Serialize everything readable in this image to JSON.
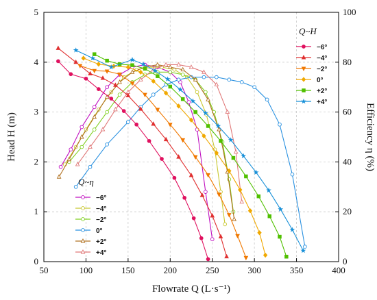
{
  "chart_data": {
    "type": "line",
    "xlabel": "Flowrate Q (L·s⁻¹)",
    "ylabel": "Head H (m)",
    "y2label": "Efficiency η (%)",
    "xlim": [
      50,
      400
    ],
    "ylim": [
      0,
      5
    ],
    "y2lim": [
      0,
      100
    ],
    "xticks": [
      "50",
      "100",
      "150",
      "200",
      "250",
      "300",
      "350",
      "400"
    ],
    "yticks": [
      "0",
      "1",
      "2",
      "3",
      "4",
      "5"
    ],
    "y2ticks": [
      "0",
      "20",
      "40",
      "60",
      "80",
      "100"
    ],
    "grid": true,
    "head_legend_title": "Q~H",
    "eff_legend_title": "Q~η",
    "head_legend_position": "top-right",
    "eff_legend_position": "bottom-left",
    "head_series": [
      {
        "name": "−6°",
        "color": "#e0115f",
        "marker": "circle",
        "x": [
          67,
          82,
          100,
          115,
          130,
          145,
          160,
          175,
          190,
          205,
          217,
          228,
          237,
          245
        ],
        "y": [
          4.02,
          3.76,
          3.67,
          3.46,
          3.27,
          3.02,
          2.75,
          2.42,
          2.06,
          1.68,
          1.28,
          0.87,
          0.47,
          0.05
        ]
      },
      {
        "name": "−4°",
        "color": "#e03030",
        "marker": "triangle",
        "x": [
          67,
          88,
          105,
          120,
          135,
          150,
          165,
          180,
          195,
          210,
          225,
          238,
          250,
          260,
          267
        ],
        "y": [
          4.28,
          4.0,
          3.77,
          3.68,
          3.54,
          3.33,
          3.06,
          2.76,
          2.45,
          2.1,
          1.73,
          1.33,
          0.92,
          0.5,
          0.1
        ]
      },
      {
        "name": "−2°",
        "color": "#f07800",
        "marker": "triangle-down",
        "x": [
          93,
          110,
          125,
          140,
          155,
          170,
          185,
          200,
          215,
          230,
          245,
          258,
          270,
          280,
          290
        ],
        "y": [
          3.93,
          3.83,
          3.82,
          3.76,
          3.58,
          3.35,
          3.05,
          2.75,
          2.44,
          2.1,
          1.74,
          1.35,
          0.94,
          0.52,
          0.08
        ]
      },
      {
        "name": "0°",
        "color": "#f0a800",
        "marker": "diamond",
        "x": [
          97,
          115,
          133,
          150,
          165,
          180,
          195,
          210,
          225,
          240,
          255,
          270,
          283,
          295,
          306,
          313
        ],
        "y": [
          4.08,
          3.96,
          3.92,
          3.9,
          3.8,
          3.62,
          3.38,
          3.12,
          2.84,
          2.52,
          2.18,
          1.82,
          1.44,
          1.02,
          0.58,
          0.13
        ]
      },
      {
        "name": "+2°",
        "color": "#50c000",
        "marker": "square",
        "x": [
          110,
          125,
          140,
          155,
          170,
          185,
          200,
          215,
          230,
          245,
          260,
          275,
          290,
          305,
          318,
          330,
          338
        ],
        "y": [
          4.16,
          4.03,
          3.96,
          3.94,
          3.87,
          3.72,
          3.51,
          3.26,
          3.0,
          2.72,
          2.42,
          2.08,
          1.71,
          1.31,
          0.91,
          0.5,
          0.1
        ]
      },
      {
        "name": "+4°",
        "color": "#1890d8",
        "marker": "star",
        "x": [
          88,
          108,
          130,
          155,
          168,
          182,
          197,
          212,
          227,
          242,
          257,
          272,
          287,
          302,
          317,
          331,
          345,
          358
        ],
        "y": [
          4.24,
          4.08,
          3.9,
          4.05,
          3.96,
          3.83,
          3.66,
          3.45,
          3.22,
          2.98,
          2.72,
          2.44,
          2.12,
          1.79,
          1.43,
          1.05,
          0.64,
          0.22
        ]
      }
    ],
    "eff_series": [
      {
        "name": "−6°",
        "color": "#c010c0",
        "marker": "circle",
        "x": [
          70,
          82,
          95,
          110,
          125,
          140,
          155,
          170,
          185,
          200,
          212,
          222,
          232,
          242,
          250
        ],
        "y": [
          38,
          45,
          54,
          62,
          70,
          75,
          78,
          79,
          78,
          76,
          72,
          64,
          53,
          28,
          9
        ]
      },
      {
        "name": "−4°",
        "color": "#c8c830",
        "marker": "circle",
        "x": [
          75,
          88,
          100,
          115,
          130,
          145,
          160,
          175,
          190,
          205,
          220,
          232,
          243,
          253,
          260,
          265
        ],
        "y": [
          39,
          46,
          53,
          61,
          68,
          74,
          77,
          78,
          78,
          77,
          74,
          68,
          59,
          45,
          28,
          15
        ]
      },
      {
        "name": "−2°",
        "color": "#80d020",
        "marker": "circle",
        "x": [
          80,
          95,
          110,
          125,
          140,
          155,
          170,
          185,
          200,
          215,
          230,
          242,
          252,
          262,
          270,
          275
        ],
        "y": [
          40,
          46,
          53,
          60,
          67,
          72,
          75,
          76,
          76,
          75,
          73,
          68,
          60,
          48,
          33,
          20
        ]
      },
      {
        "name": "0°",
        "color": "#2890e0",
        "marker": "circle",
        "x": [
          88,
          105,
          125,
          150,
          165,
          180,
          195,
          210,
          225,
          240,
          255,
          270,
          285,
          300,
          315,
          330,
          345,
          360
        ],
        "y": [
          30,
          38,
          47,
          56,
          62,
          67,
          71,
          73,
          74,
          74,
          74,
          73,
          72,
          70,
          65,
          55,
          35,
          6
        ]
      },
      {
        "name": "+2°",
        "color": "#b07020",
        "marker": "triangle",
        "x": [
          68,
          80,
          95,
          110,
          125,
          140,
          155,
          170,
          185,
          200,
          215,
          230,
          245,
          258,
          268,
          276
        ],
        "y": [
          34,
          41,
          50,
          58,
          66,
          72,
          76,
          78,
          79,
          78,
          77,
          73,
          65,
          53,
          36,
          17
        ]
      },
      {
        "name": "+4°",
        "color": "#e07878",
        "marker": "triangle",
        "x": [
          90,
          105,
          120,
          135,
          150,
          165,
          180,
          195,
          210,
          225,
          240,
          255,
          268,
          278,
          285
        ],
        "y": [
          39,
          46,
          53,
          61,
          68,
          73,
          77,
          79,
          79,
          78,
          76,
          71,
          60,
          44,
          24
        ]
      }
    ]
  }
}
